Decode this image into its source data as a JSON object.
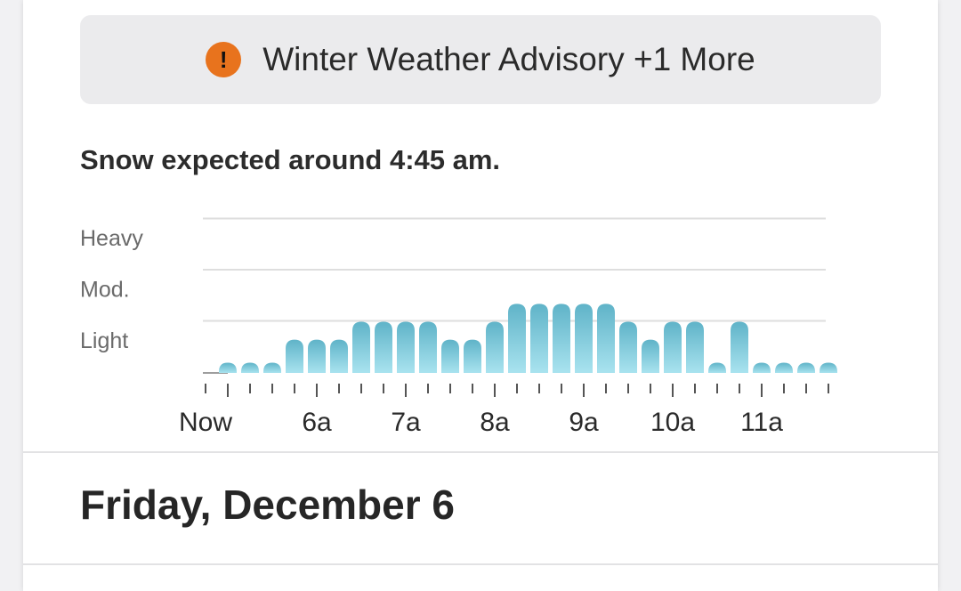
{
  "alert": {
    "icon": "exclamation-icon",
    "icon_glyph": "!",
    "icon_color": "#e8731d",
    "text": "Winter Weather Advisory +1 More"
  },
  "forecast_summary": "Snow expected around 4:45 am.",
  "chart_data": {
    "type": "bar",
    "title": "",
    "y_levels": [
      "Light",
      "Mod.",
      "Heavy"
    ],
    "x_tick_labels": [
      "Now",
      "6a",
      "7a",
      "8a",
      "9a",
      "10a",
      "11a"
    ],
    "categories": [
      "Now",
      "",
      "",
      "",
      "",
      "6a",
      "",
      "",
      "",
      "7a",
      "",
      "",
      "",
      "8a",
      "",
      "",
      "",
      "9a",
      "",
      "",
      "",
      "10a",
      "",
      "",
      "",
      "11a",
      "",
      "",
      ""
    ],
    "values": [
      0,
      0.2,
      0.2,
      0.2,
      0.65,
      0.65,
      0.65,
      1.0,
      1.0,
      1.0,
      1.0,
      0.65,
      0.65,
      1.0,
      1.35,
      1.35,
      1.35,
      1.35,
      1.35,
      1.0,
      0.65,
      1.0,
      1.0,
      0.2,
      1.0,
      0.2,
      0.2,
      0.2,
      0.2
    ],
    "ylim": [
      0,
      3
    ],
    "bar_color_top": "#5fb3c8",
    "bar_color_bottom": "#a9e3ef",
    "grid": true
  },
  "day_header": "Friday, December 6"
}
